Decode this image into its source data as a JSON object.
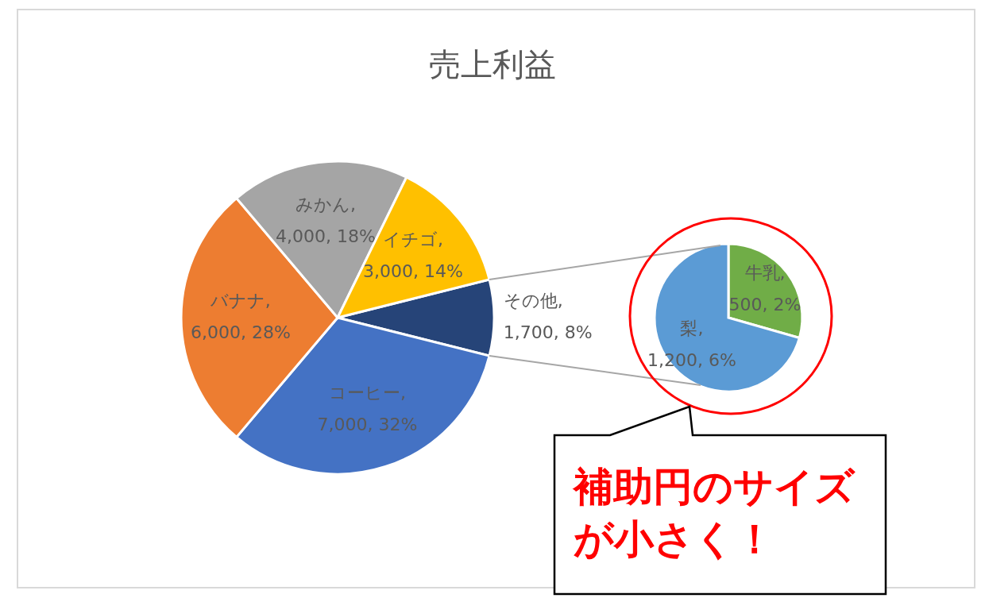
{
  "chart_data": [
    {
      "type": "pie",
      "title": "売上利益",
      "categories": [
        "その他",
        "コーヒー",
        "バナナ",
        "みかん",
        "イチゴ"
      ],
      "values": [
        1700,
        7000,
        6000,
        4000,
        3000
      ],
      "colors": [
        "#264478",
        "#4472c4",
        "#ed7d31",
        "#a5a5a5",
        "#ffc000"
      ],
      "value_labels": [
        ", 1,700, 8%",
        ", 7,000, 32%",
        ", 6,000, 28%",
        ", 4,000, 18%",
        ", 3,000, 14%"
      ]
    },
    {
      "type": "pie",
      "categories": [
        "牛乳",
        "梨"
      ],
      "values": [
        500,
        1200
      ],
      "colors": [
        "#70ad47",
        "#5b9bd5"
      ],
      "value_labels": [
        ", 500, 2%",
        ", 1,200, 6%"
      ],
      "annotations": [
        "補助円のサイズが小さく！"
      ]
    }
  ]
}
